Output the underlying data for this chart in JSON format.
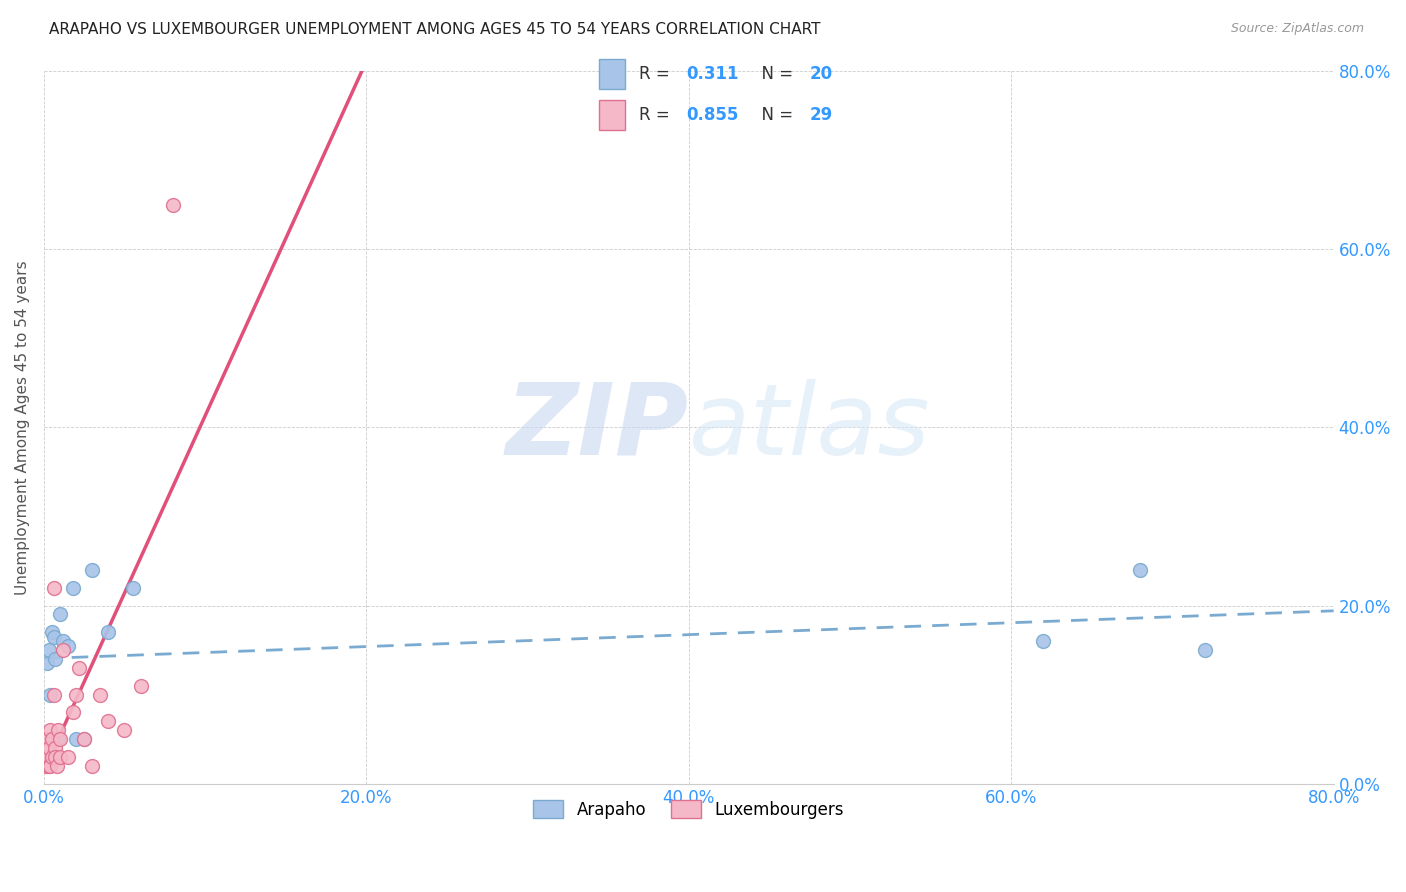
{
  "title": "ARAPAHO VS LUXEMBOURGER UNEMPLOYMENT AMONG AGES 45 TO 54 YEARS CORRELATION CHART",
  "source": "Source: ZipAtlas.com",
  "ylabel": "Unemployment Among Ages 45 to 54 years",
  "xlim": [
    0.0,
    0.8
  ],
  "ylim": [
    0.0,
    0.8
  ],
  "xticks": [
    0.0,
    0.2,
    0.4,
    0.6,
    0.8
  ],
  "yticks": [
    0.0,
    0.2,
    0.4,
    0.6,
    0.8
  ],
  "xtick_labels": [
    "0.0%",
    "20.0%",
    "40.0%",
    "60.0%",
    "80.0%"
  ],
  "ytick_labels": [
    "0.0%",
    "20.0%",
    "40.0%",
    "60.0%",
    "80.0%"
  ],
  "arapaho_color": "#a8c4e8",
  "luxembourger_color": "#f5b8c8",
  "arapaho_edge": "#7aaad0",
  "luxembourger_edge": "#e07090",
  "trend_arapaho_color": "#7aaad0",
  "trend_luxembourger_color": "#e0507a",
  "watermark_zip": "ZIP",
  "watermark_atlas": "atlas",
  "legend_r_arapaho": "0.311",
  "legend_n_arapaho": "20",
  "legend_r_luxembourger": "0.855",
  "legend_n_luxembourger": "29",
  "arapaho_x": [
    0.002,
    0.003,
    0.004,
    0.005,
    0.006,
    0.007,
    0.008,
    0.009,
    0.01,
    0.012,
    0.015,
    0.018,
    0.02,
    0.025,
    0.03,
    0.04,
    0.055,
    0.62,
    0.68,
    0.72
  ],
  "arapaho_y": [
    0.135,
    0.15,
    0.1,
    0.17,
    0.165,
    0.14,
    0.05,
    0.05,
    0.19,
    0.16,
    0.155,
    0.22,
    0.05,
    0.05,
    0.24,
    0.17,
    0.22,
    0.16,
    0.24,
    0.15
  ],
  "luxembourger_x": [
    0.001,
    0.002,
    0.002,
    0.003,
    0.003,
    0.004,
    0.004,
    0.005,
    0.005,
    0.006,
    0.006,
    0.007,
    0.007,
    0.008,
    0.009,
    0.01,
    0.01,
    0.012,
    0.015,
    0.018,
    0.02,
    0.022,
    0.025,
    0.03,
    0.035,
    0.04,
    0.05,
    0.06,
    0.08
  ],
  "luxembourger_y": [
    0.02,
    0.03,
    0.05,
    0.02,
    0.04,
    0.02,
    0.06,
    0.03,
    0.05,
    0.1,
    0.22,
    0.04,
    0.03,
    0.02,
    0.06,
    0.03,
    0.05,
    0.15,
    0.03,
    0.08,
    0.1,
    0.13,
    0.05,
    0.02,
    0.1,
    0.07,
    0.06,
    0.11,
    0.65
  ]
}
